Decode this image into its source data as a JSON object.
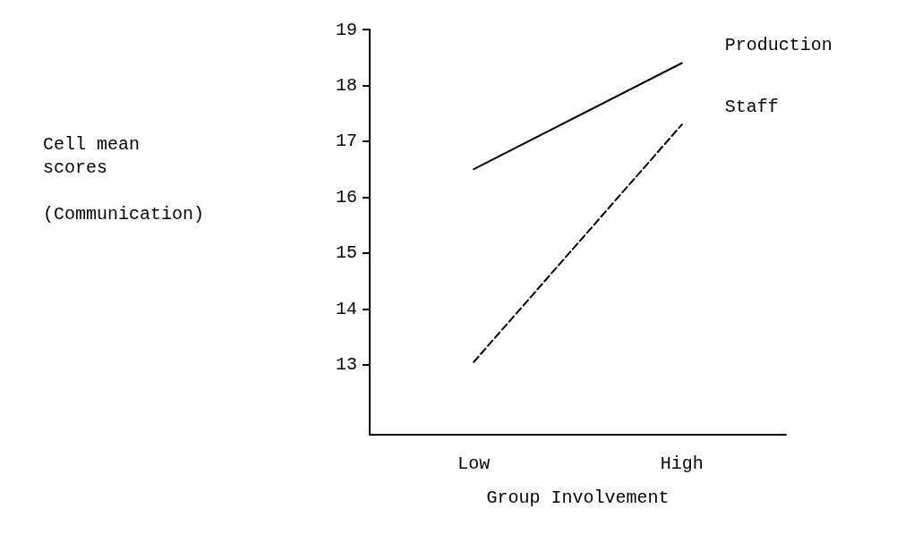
{
  "chart_data": {
    "type": "line",
    "xlabel": "Group Involvement",
    "ylabel": "Cell mean\nscores\n\n(Communication)",
    "categories": [
      "Low",
      "High"
    ],
    "series": [
      {
        "name": "Production",
        "color": "#000000",
        "values": [
          16.5,
          18.4
        ],
        "line_style": "solid"
      },
      {
        "name": "Staff",
        "color": "#000000",
        "values": [
          13.05,
          17.3
        ],
        "line_style": "dashed"
      }
    ],
    "ylim": [
      11.75,
      19
    ],
    "yticks": [
      13,
      14,
      15,
      16,
      17,
      18,
      19
    ],
    "grid": false,
    "legend": false,
    "marker": "none"
  }
}
